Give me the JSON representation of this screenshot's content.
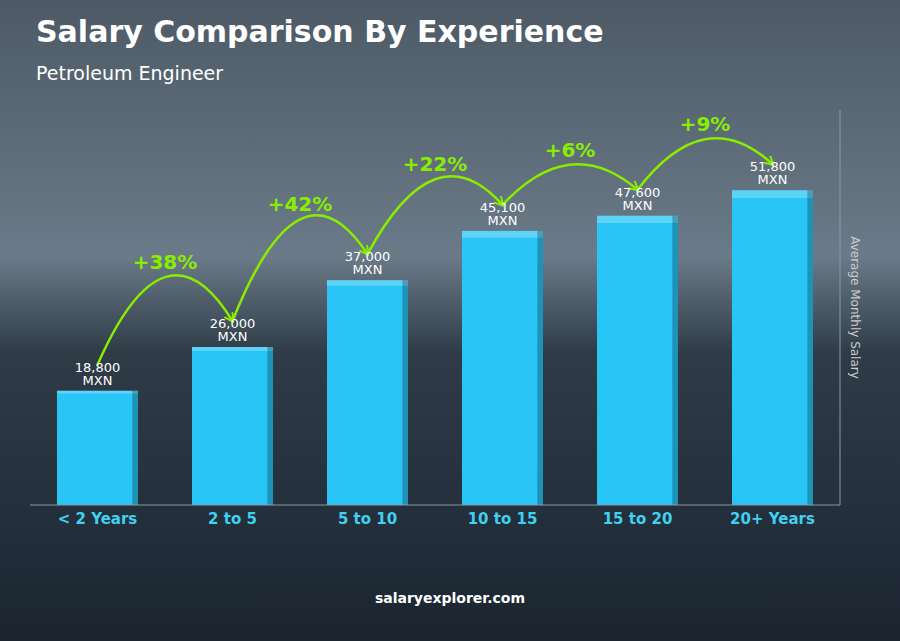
{
  "chart_data": {
    "type": "bar",
    "title": "Salary Comparison By Experience",
    "subtitle": "Petroleum Engineer",
    "categories": [
      "< 2 Years",
      "2 to 5",
      "5 to 10",
      "10 to 15",
      "15 to 20",
      "20+ Years"
    ],
    "values": [
      18800,
      26000,
      37000,
      45100,
      47600,
      51800
    ],
    "value_labels": [
      "18,800 MXN",
      "26,000 MXN",
      "37,000 MXN",
      "45,100 MXN",
      "47,600 MXN",
      "51,800 MXN"
    ],
    "data_labels": true,
    "color": "#29C5F6",
    "ylim": [
      0,
      65000
    ],
    "tick_labels": "x",
    "y_label": "Average Monthly Salary",
    "annotations": [
      {
        "category": "2 to 5",
        "text": "+38%",
        "color": "#88EE00"
      },
      {
        "category": "5 to 10",
        "text": "+42%",
        "color": "#88EE00"
      },
      {
        "category": "10 to 15",
        "text": "+22%",
        "color": "#88EE00"
      },
      {
        "category": "15 to 20",
        "text": "+6%",
        "color": "#88EE00"
      },
      {
        "category": "20+ Years",
        "text": "+9%",
        "color": "#88EE00"
      }
    ],
    "footer": "salaryexplorer.com"
  }
}
